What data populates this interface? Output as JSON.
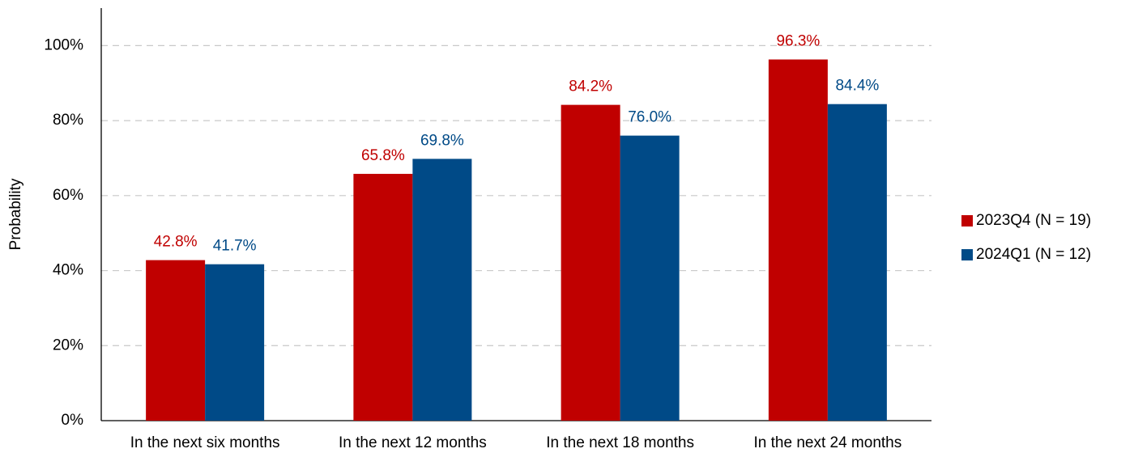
{
  "chart_data": {
    "type": "bar",
    "y_label": "Probability",
    "categories": [
      "In the next six months",
      "In the next 12 months",
      "In the next 18 months",
      "In the next 24 months"
    ],
    "series": [
      {
        "name": "2023Q4 (N = 19)",
        "color": "#c00000",
        "values": [
          42.8,
          65.8,
          84.2,
          96.3
        ],
        "value_labels": [
          "42.8%",
          "65.8%",
          "84.2%",
          "96.3%"
        ]
      },
      {
        "name": "2024Q1 (N = 12)",
        "color": "#004a87",
        "values": [
          41.7,
          69.8,
          76.0,
          84.4
        ],
        "value_labels": [
          "41.7%",
          "69.8%",
          "76.0%",
          "84.4%"
        ]
      }
    ],
    "ylim": [
      0,
      110
    ],
    "yticks": [
      {
        "value": 0,
        "label": "0%"
      },
      {
        "value": 20,
        "label": "20%"
      },
      {
        "value": 40,
        "label": "40%"
      },
      {
        "value": 60,
        "label": "60%"
      },
      {
        "value": 80,
        "label": "80%"
      },
      {
        "value": 100,
        "label": "100%"
      }
    ],
    "grid": true,
    "legend": "right"
  }
}
